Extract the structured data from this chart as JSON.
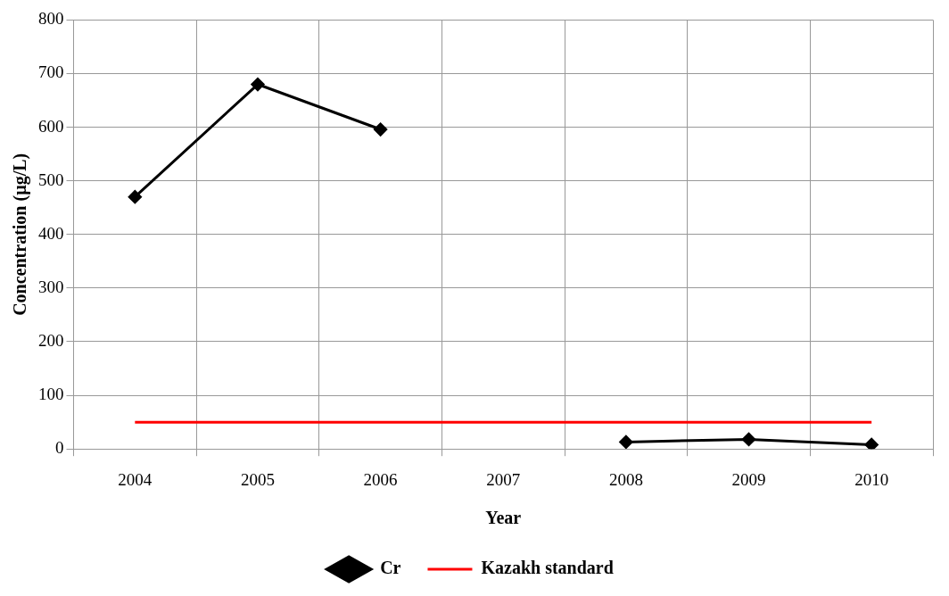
{
  "chart_data": {
    "type": "line",
    "xlabel": "Year",
    "ylabel": "Concentration (µg/L)",
    "categories": [
      "2004",
      "2005",
      "2006",
      "2007",
      "2008",
      "2009",
      "2010"
    ],
    "series": [
      {
        "name": "Cr",
        "color": "#000000",
        "marker": "diamond",
        "values": [
          470,
          680,
          596,
          null,
          13,
          18,
          8
        ]
      },
      {
        "name": "Kazakh standard",
        "color": "#ff0000",
        "marker": "none",
        "values": [
          50,
          50,
          50,
          50,
          50,
          50,
          50
        ]
      }
    ],
    "ylim": [
      0,
      800
    ],
    "yticks": [
      0,
      100,
      200,
      300,
      400,
      500,
      600,
      700,
      800
    ],
    "grid": true,
    "legend": "bottom"
  }
}
